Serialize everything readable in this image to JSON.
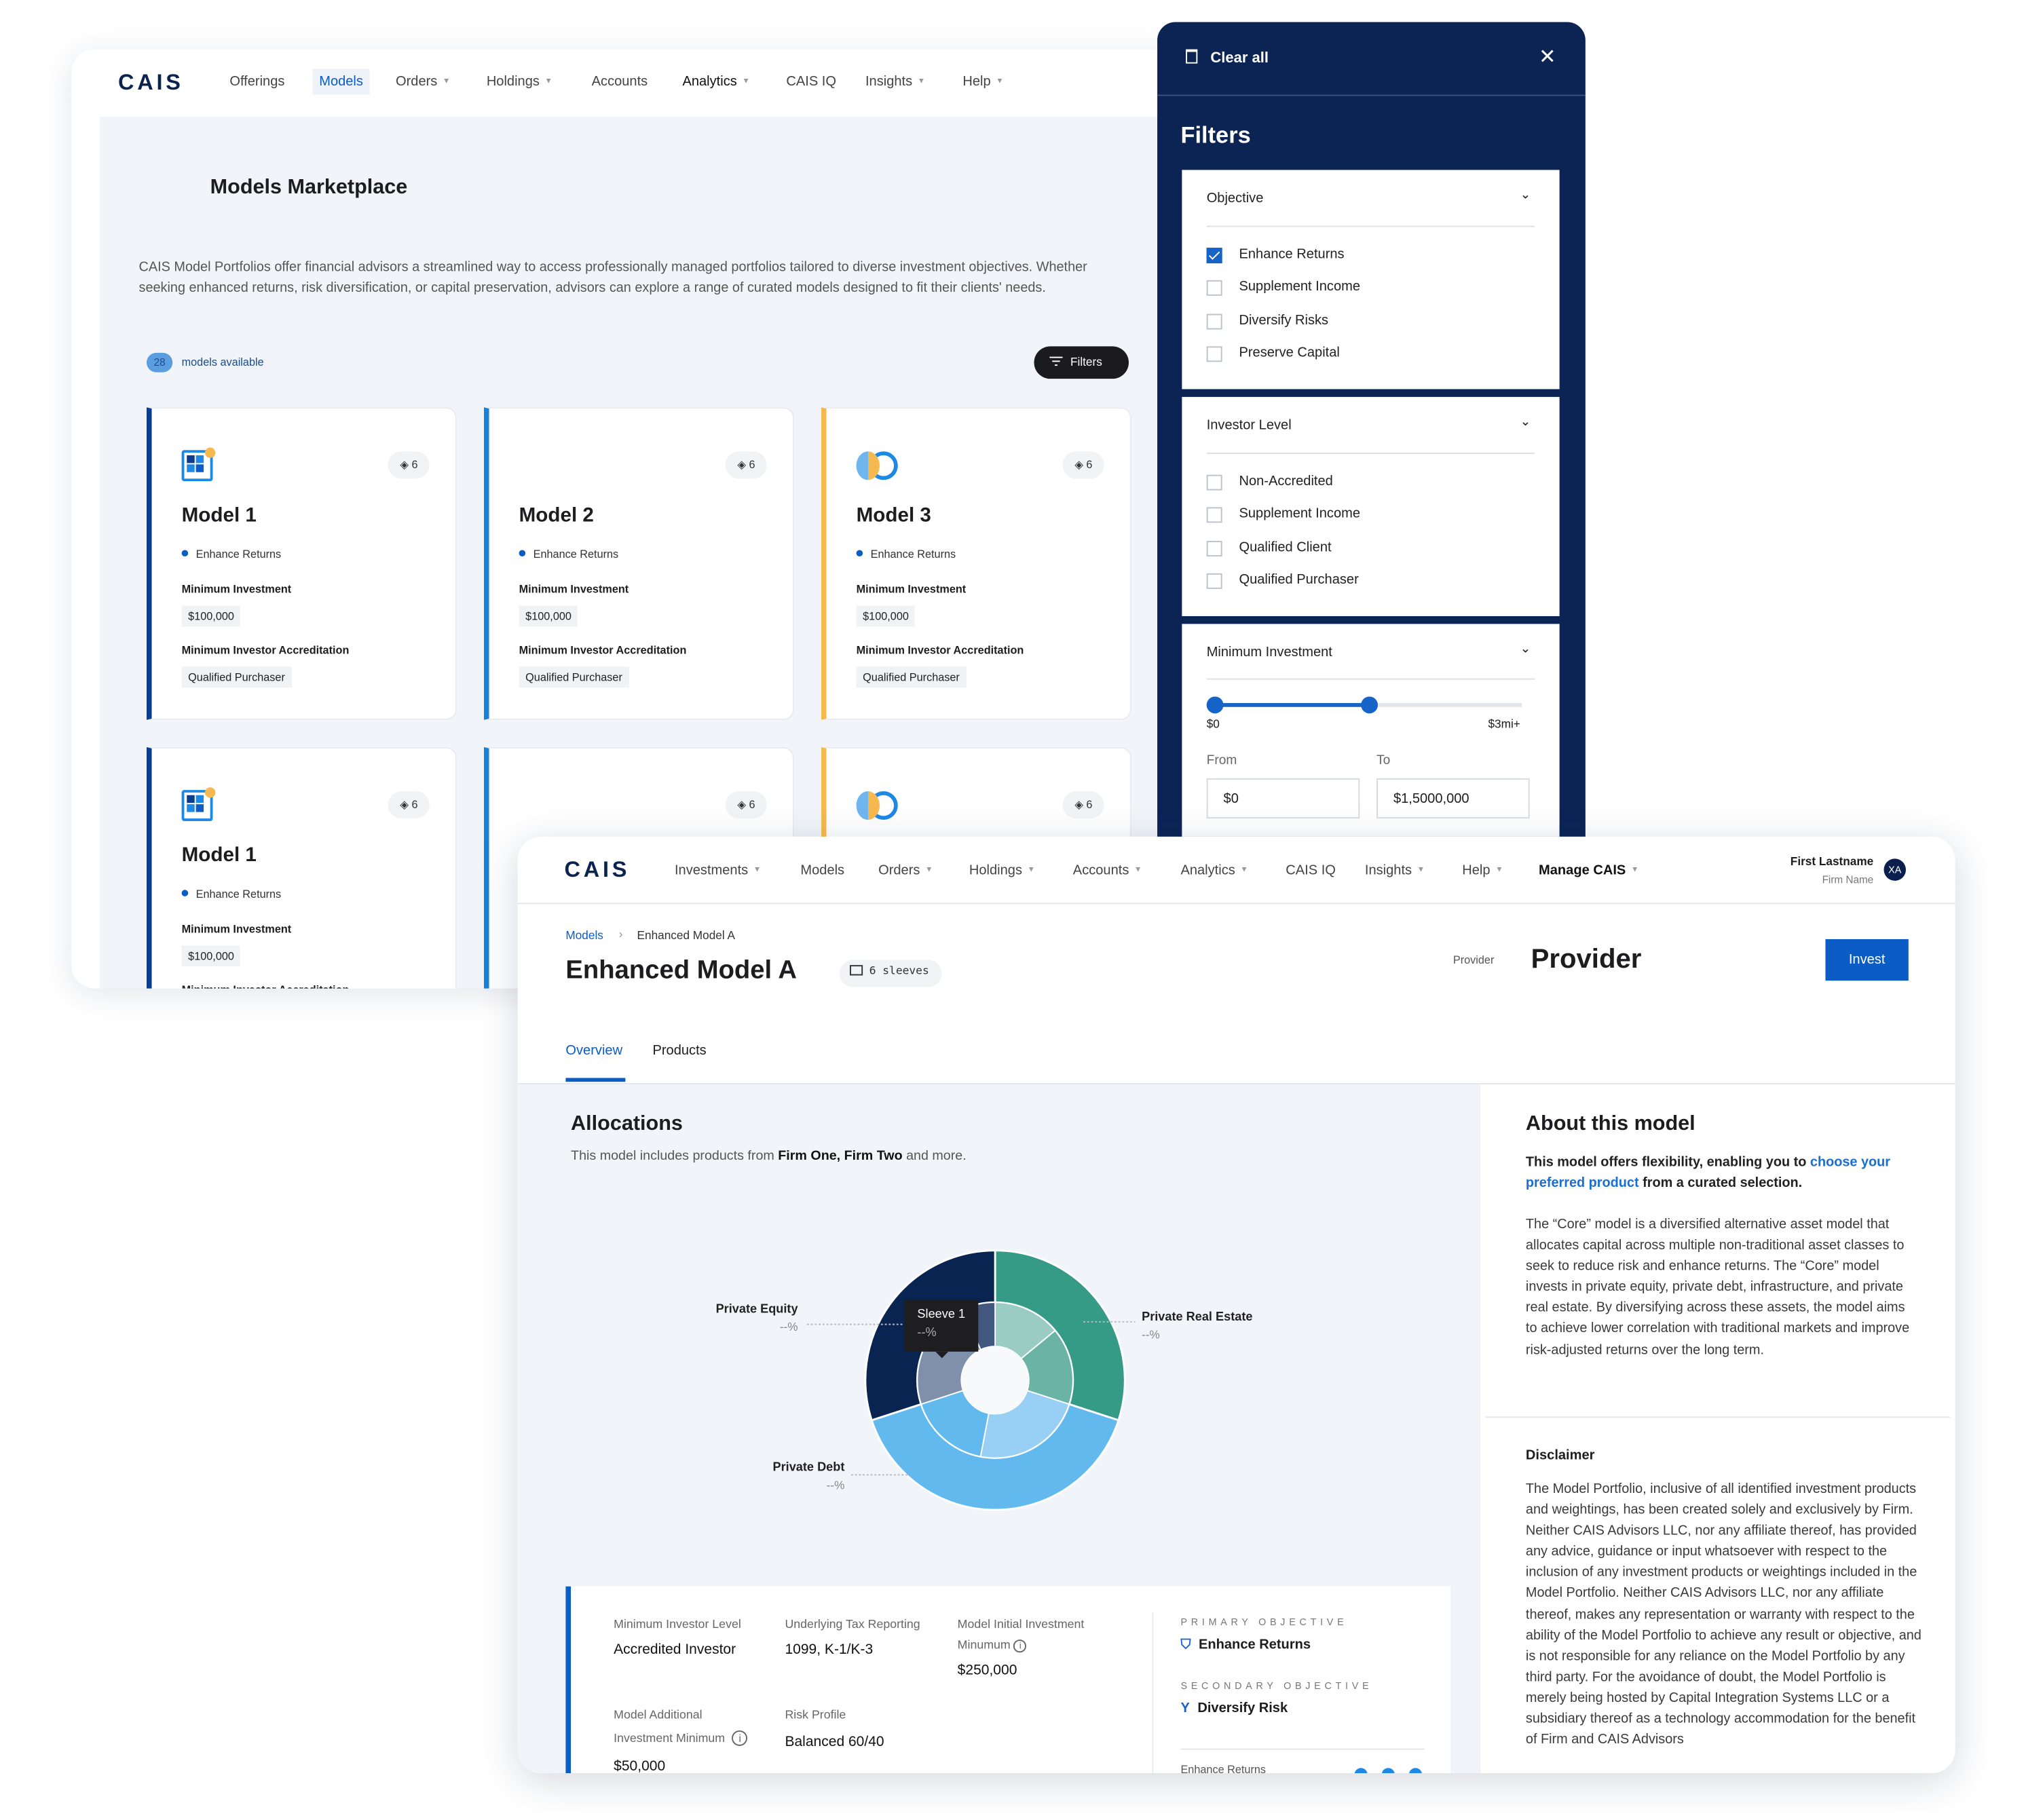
{
  "back_window": {
    "logo": "CAIS",
    "nav": [
      {
        "label": "Offerings",
        "caret": false
      },
      {
        "label": "Models",
        "caret": false,
        "active": true
      },
      {
        "label": "Orders",
        "caret": true
      },
      {
        "label": "Holdings",
        "caret": true
      },
      {
        "label": "Accounts",
        "caret": false
      },
      {
        "label": "Analytics",
        "caret": true
      },
      {
        "label": "CAIS IQ",
        "caret": false
      },
      {
        "label": "Insights",
        "caret": true
      },
      {
        "label": "Help",
        "caret": true
      }
    ],
    "title": "Models Marketplace",
    "description": "CAIS Model Portfolios offer financial advisors a streamlined way to access professionally managed portfolios tailored to diverse investment objectives. Whether seeking enhanced returns, risk diversification, or capital preservation, advisors can explore a range of curated models designed to fit their clients' needs.",
    "count": "28",
    "count_label": "models available",
    "filters_button": "Filters",
    "cards": [
      {
        "name": "Model 1",
        "objective": "Enhance Returns",
        "sleeves": "6",
        "min_inv_label": "Minimum Investment",
        "min_inv": "$100,000",
        "accr_label": "Minimum Investor Accreditation",
        "accr": "Qualified Purchaser",
        "accent": "#0b3d8c",
        "icon": "grid-logo-icon"
      },
      {
        "name": "Model 2",
        "objective": "Enhance Returns",
        "sleeves": "6",
        "min_inv_label": "Minimum Investment",
        "min_inv": "$100,000",
        "accr_label": "Minimum Investor Accreditation",
        "accr": "Qualified Purchaser",
        "accent": "#1a7fd6",
        "icon": ""
      },
      {
        "name": "Model 3",
        "objective": "Enhance Returns",
        "sleeves": "6",
        "min_inv_label": "Minimum Investment",
        "min_inv": "$100,000",
        "accr_label": "Minimum Investor Accreditation",
        "accr": "Qualified Purchaser",
        "accent": "#f6b94f",
        "icon": "ring-logo-icon"
      },
      {
        "name": "Model 1",
        "objective": "Enhance Returns",
        "sleeves": "6",
        "min_inv_label": "Minimum Investment",
        "min_inv": "$100,000",
        "accr_label": "Minimum Investor Accreditation",
        "accent": "#0b3d8c",
        "icon": "grid-logo-icon"
      },
      {
        "sleeves": "6",
        "accent": "#1a7fd6"
      },
      {
        "sleeves": "6",
        "accent": "#f6b94f",
        "icon": "ring-logo-icon"
      }
    ]
  },
  "filters": {
    "clear_all": "Clear all",
    "title": "Filters",
    "objective": {
      "label": "Objective",
      "options": [
        {
          "label": "Enhance Returns",
          "checked": true
        },
        {
          "label": "Supplement Income",
          "checked": false
        },
        {
          "label": "Diversify Risks",
          "checked": false
        },
        {
          "label": "Preserve Capital",
          "checked": false
        }
      ]
    },
    "investor_level": {
      "label": "Investor Level",
      "options": [
        {
          "label": "Non-Accredited",
          "checked": false
        },
        {
          "label": "Supplement Income",
          "checked": false
        },
        {
          "label": "Qualified Client",
          "checked": false
        },
        {
          "label": "Qualified Purchaser",
          "checked": false
        }
      ]
    },
    "min_investment": {
      "label": "Minimum Investment",
      "min_label": "$0",
      "max_label": "$3mi+",
      "range_fraction": [
        0,
        0.5
      ],
      "from_label": "From",
      "to_label": "To",
      "from": "$0",
      "to": "$1,5000,000"
    }
  },
  "front_window": {
    "logo": "CAIS",
    "nav": [
      {
        "label": "Investments",
        "caret": true
      },
      {
        "label": "Models",
        "caret": false
      },
      {
        "label": "Orders",
        "caret": true
      },
      {
        "label": "Holdings",
        "caret": true
      },
      {
        "label": "Accounts",
        "caret": true
      },
      {
        "label": "Analytics",
        "caret": true
      },
      {
        "label": "CAIS IQ",
        "caret": false
      },
      {
        "label": "Insights",
        "caret": true
      },
      {
        "label": "Help",
        "caret": true
      },
      {
        "label": "Manage CAIS",
        "caret": true,
        "bold": true
      }
    ],
    "user": {
      "name": "First Lastname",
      "firm": "Firm Name",
      "initials": "XA"
    },
    "breadcrumb": {
      "parent": "Models",
      "current": "Enhanced Model A"
    },
    "title": "Enhanced Model A",
    "sleeves_chip": "6 sleeves",
    "provider_label": "Provider",
    "provider": "Provider",
    "invest": "Invest",
    "tabs": [
      {
        "label": "Overview",
        "active": true
      },
      {
        "label": "Products"
      }
    ],
    "allocations": {
      "title": "Allocations",
      "subtitle_pre": "This model includes products from ",
      "subtitle_firms": "Firm One, Firm Two",
      "subtitle_post": " and more."
    },
    "details": {
      "min_level_label": "Minimum Investor Level",
      "min_level": "Accredited Investor",
      "tax_label": "Underlying Tax Reporting",
      "tax": "1099, K-1/K-3",
      "initial_label_1": "Model Initial Investment",
      "initial_label_2": "Minumum",
      "initial": "$250,000",
      "additional_label_1": "Model Additional",
      "additional_label_2": "Investment Minimum",
      "additional": "$50,000",
      "risk_label": "Risk Profile",
      "risk": "Balanced 60/40",
      "primary_label": "PRIMARY OBJECTIVE",
      "primary": "Enhance Returns",
      "secondary_label": "SECONDARY OBJECTIVE",
      "secondary": "Diversify Risk",
      "rating_label": "Enhance Returns",
      "rating_dots": 3
    },
    "about": {
      "title": "About this model",
      "lead_pre": "This model offers flexibility, enabling you to ",
      "lead_link": "choose your preferred product",
      "lead_post": " from a curated selection.",
      "body": "The “Core” model is a diversified alternative asset model that allocates capital across multiple non-traditional asset classes to seek to reduce risk and enhance returns. The “Core” model invests in private equity, private debt, infrastructure, and private real estate. By diversifying across these assets, the model aims to achieve lower correlation with traditional markets and improve risk-adjusted returns over the long term.",
      "disclaimer_title": "Disclaimer",
      "disclaimer": "The Model Portfolio, inclusive of all identified investment products and weightings, has been created solely and exclusively by Firm. Neither CAIS Advisors LLC, nor any affiliate thereof, has provided any advice, guidance or input whatsoever with respect to the inclusion of any investment products or weightings included in the Model Portfolio. Neither CAIS Advisors LLC, nor any affiliate thereof, makes any representation or warranty with respect to the ability of the Model Portfolio to achieve any result or objective, and is not responsible for any reliance on the Model Portfolio by any third party. For the avoidance of doubt, the Model Portfolio is merely being hosted by Capital Integration Systems LLC or a subsidiary thereof as a technology accommodation for the benefit of Firm and CAIS Advisors"
    }
  },
  "chart_data": {
    "type": "pie",
    "variant": "two-level donut",
    "series": [
      {
        "name": "Private Real Estate",
        "value_label": "--%",
        "share": 0.3,
        "color": "#359a86",
        "sleeves": [
          {
            "share": 0.14,
            "color": "#9bccc4"
          },
          {
            "share": 0.16,
            "color": "#6ab3a5"
          }
        ]
      },
      {
        "name": "Private Debt",
        "value_label": "--%",
        "share": 0.4,
        "color": "#62b9ee",
        "sleeves": [
          {
            "share": 0.23,
            "color": "#97d0f4"
          },
          {
            "share": 0.17,
            "color": "#62b9ee"
          }
        ]
      },
      {
        "name": "Private Equity",
        "value_label": "--%",
        "share": 0.3,
        "color": "#0a2452",
        "sleeves": [
          {
            "share": 0.23,
            "color": "#7f90aa"
          },
          {
            "share": 0.07,
            "color": "#42587e"
          }
        ]
      }
    ],
    "tooltip": {
      "title": "Sleeve 1",
      "value": "--%"
    }
  }
}
